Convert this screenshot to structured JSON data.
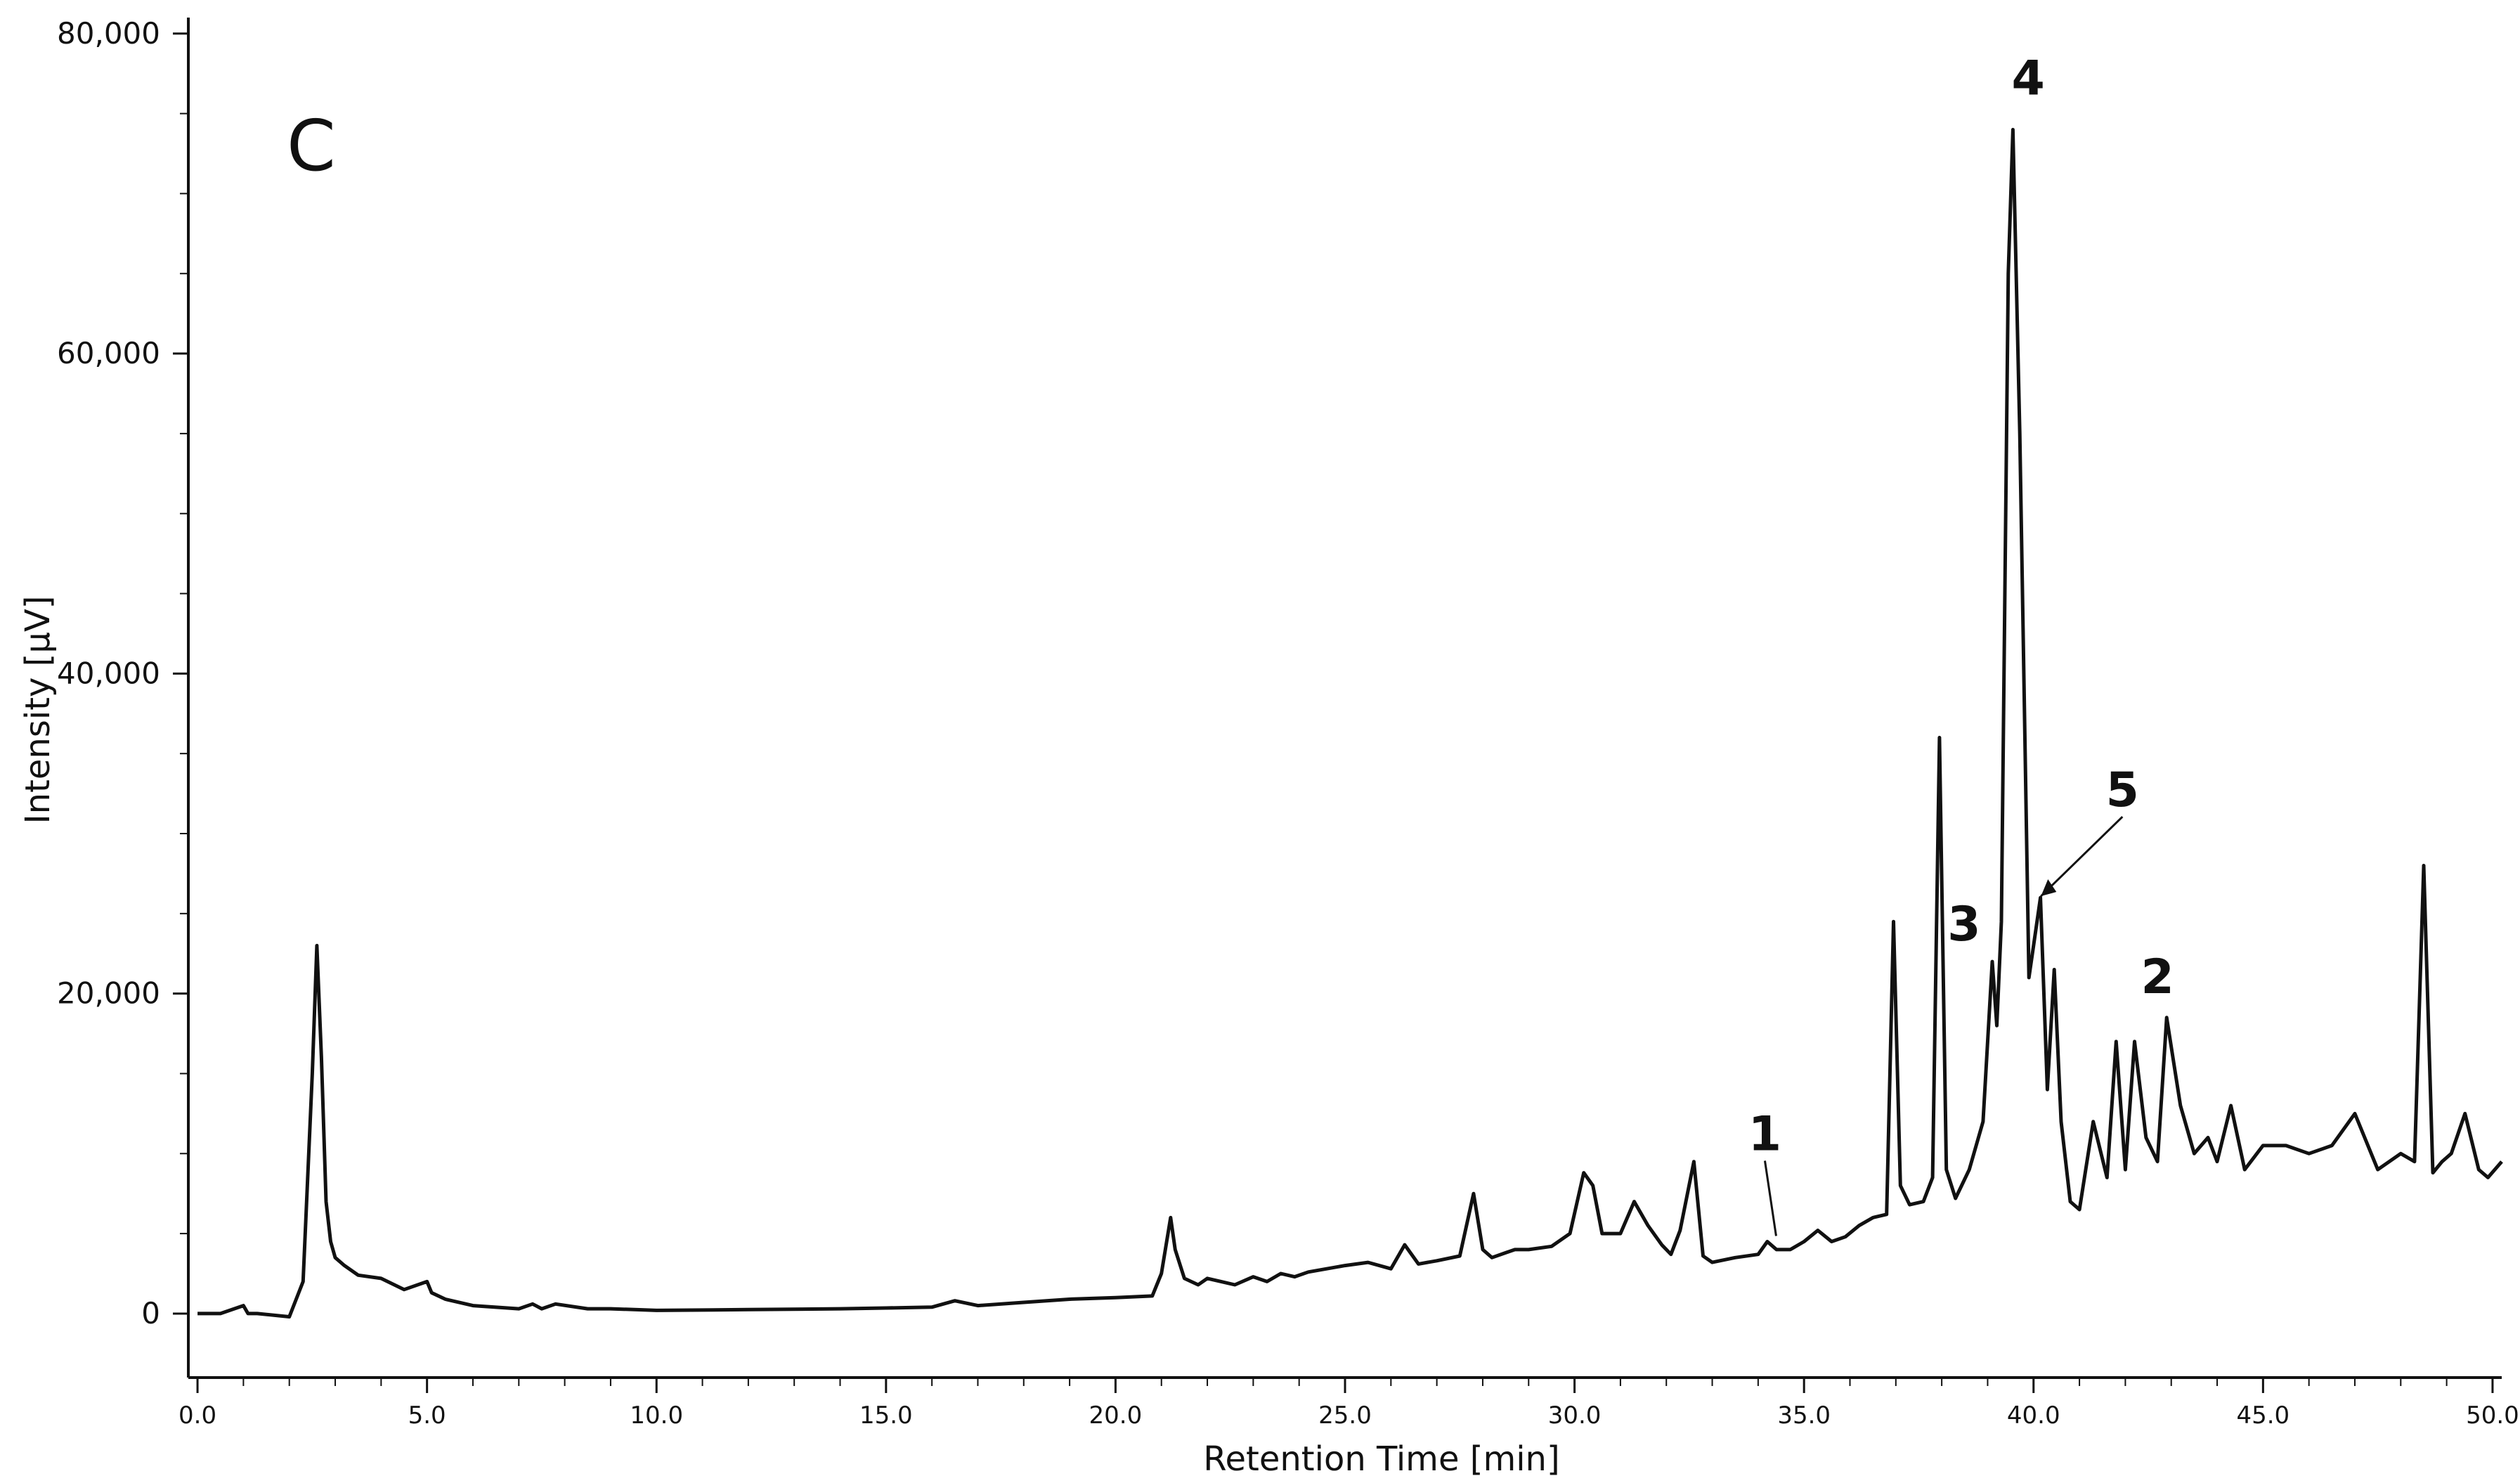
{
  "chart_data": {
    "type": "line",
    "panel_label": "C",
    "xlabel": "Retention Time [min]",
    "ylabel": "Intensity [µV]",
    "xlim": [
      -0.2,
      50.2
    ],
    "ylim": [
      -4000,
      81000
    ],
    "x_ticks": [
      0,
      5,
      10,
      15,
      20,
      25,
      30,
      35,
      40,
      45,
      50
    ],
    "x_tick_labels": [
      "0.0",
      "5.0",
      "10.0",
      "15.0",
      "20.0",
      "25.0",
      "30.0",
      "35.0",
      "40.0",
      "45.0",
      "50.0"
    ],
    "y_ticks": [
      0,
      20000,
      40000,
      60000,
      80000
    ],
    "y_tick_labels": [
      "0",
      "20,000",
      "40,000",
      "60,000",
      "80,000"
    ],
    "grid": false,
    "line_color": "#111111",
    "peak_fill_color": "#3a3a6a",
    "series": [
      {
        "x": [
          0.0,
          0.5,
          1.0,
          1.1,
          1.3,
          2.0,
          2.3,
          2.5,
          2.6,
          2.7,
          2.8,
          2.9,
          3.0,
          3.2,
          3.5,
          4.0,
          4.5,
          5.0,
          5.1,
          5.4,
          6.0,
          7.0,
          7.3,
          7.5,
          7.8,
          8.5,
          9.0,
          10.0,
          12.0,
          14.0,
          15.0,
          16.0,
          16.5,
          17.0,
          18.0,
          19.0,
          20.0,
          20.8,
          21.0,
          21.2,
          21.3,
          21.5,
          21.8,
          22.0,
          22.3,
          22.6,
          23.0,
          23.3,
          23.6,
          23.9,
          24.2,
          25.0,
          25.5,
          26.0,
          26.3,
          26.6,
          27.0,
          27.5,
          27.8,
          28.0,
          28.2,
          28.5,
          28.7,
          29.0,
          29.5,
          29.9,
          30.2,
          30.4,
          30.6,
          31.0,
          31.3,
          31.6,
          31.9,
          32.1,
          32.3,
          32.6,
          32.8,
          33.0,
          33.5,
          34.0,
          34.2,
          34.4,
          34.7,
          35.0,
          35.3,
          35.6,
          35.9,
          36.2,
          36.5,
          36.8,
          36.95,
          37.1,
          37.3,
          37.6,
          37.8,
          37.95,
          38.1,
          38.3,
          38.6,
          38.9,
          39.1,
          39.2,
          39.3,
          39.45,
          39.55,
          39.7,
          39.9,
          40.0,
          40.15,
          40.3,
          40.45,
          40.6,
          40.8,
          41.0,
          41.3,
          41.6,
          41.8,
          42.0,
          42.2,
          42.45,
          42.7,
          42.9,
          43.2,
          43.5,
          43.8,
          44.0,
          44.3,
          44.6,
          45.0,
          45.5,
          46.0,
          46.5,
          47.0,
          47.5,
          48.0,
          48.3,
          48.5,
          48.7,
          48.9,
          49.1,
          49.4,
          49.7,
          49.9,
          50.2
        ],
        "y": [
          0,
          0,
          500,
          0,
          0,
          -200,
          2000,
          15000,
          23000,
          16000,
          7000,
          4500,
          3500,
          3000,
          2400,
          2200,
          1500,
          2000,
          1300,
          900,
          500,
          300,
          600,
          300,
          600,
          300,
          300,
          200,
          250,
          300,
          350,
          400,
          800,
          500,
          700,
          900,
          1000,
          1100,
          2500,
          6000,
          4000,
          2200,
          1800,
          2200,
          2000,
          1800,
          2300,
          2000,
          2500,
          2300,
          2600,
          3000,
          3200,
          2800,
          4300,
          3100,
          3300,
          3600,
          7500,
          4000,
          3500,
          3800,
          4000,
          4000,
          4200,
          5000,
          8800,
          8000,
          5000,
          5000,
          7000,
          5500,
          4300,
          3700,
          5200,
          9500,
          3600,
          3200,
          3500,
          3700,
          4500,
          4000,
          4000,
          4500,
          5200,
          4500,
          4800,
          5500,
          6000,
          6200,
          24500,
          8000,
          6800,
          7000,
          8500,
          36000,
          9000,
          7200,
          9000,
          12000,
          22000,
          18000,
          24500,
          65000,
          74000,
          55000,
          21000,
          23000,
          26000,
          14000,
          21500,
          12000,
          7000,
          6500,
          12000,
          8500,
          17000,
          9000,
          17000,
          11000,
          9500,
          18500,
          13000,
          10000,
          11000,
          9500,
          13000,
          9000,
          10500,
          10500,
          10000,
          10500,
          12500,
          9000,
          10000,
          9500,
          28000,
          8800,
          9500,
          10000,
          12500,
          9000,
          8500,
          9500
        ]
      }
    ],
    "annotations": [
      {
        "label": "1",
        "x": 34.3,
        "y": 4500
      },
      {
        "label": "2",
        "x": 42.7,
        "y": 18500
      },
      {
        "label": "3",
        "x": 39.1,
        "y": 22000
      },
      {
        "label": "4",
        "x": 39.5,
        "y": 74000
      },
      {
        "label": "5",
        "x": 40.1,
        "y": 26000
      }
    ]
  }
}
